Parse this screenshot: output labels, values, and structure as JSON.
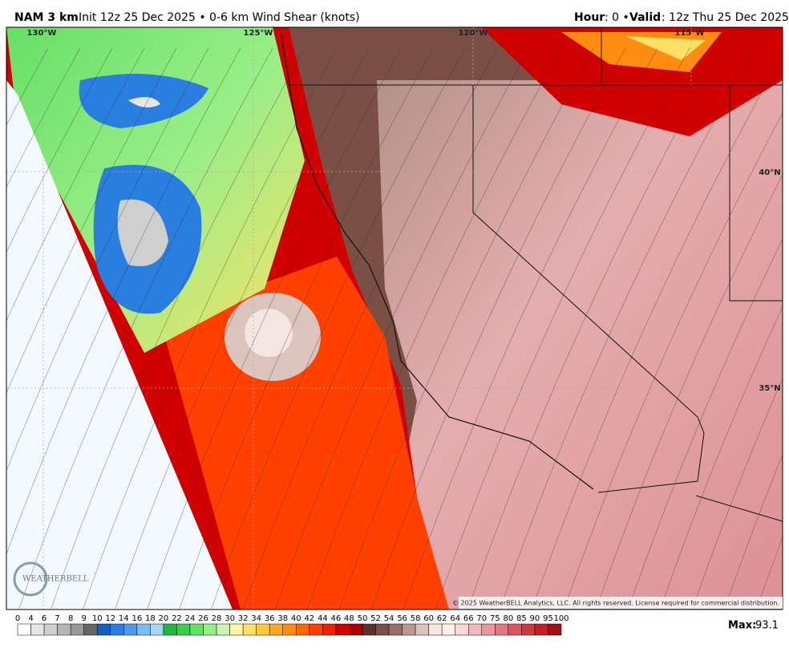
{
  "header": {
    "model": "NAM 3 km",
    "detail": "Init 12z 25 Dec 2025 • 0-6 km Wind Shear (knots)",
    "hour_label": "Hour",
    "hour_text": ": 0 •",
    "valid_label": "Valid",
    "valid_text": ": 12z Thu 25 Dec 2025"
  },
  "map": {
    "lon_labels": [
      "130°W",
      "125°W",
      "120°W",
      "115°W"
    ],
    "lat_labels": [
      "40°N",
      "35°N"
    ],
    "logo": "WEATHERBELL",
    "copyright": "© 2025 WeatherBELL Analytics, LLC. All rights reserved. License required for commercial distribution."
  },
  "colorbar": {
    "labels": [
      0,
      4,
      6,
      7,
      8,
      9,
      10,
      12,
      14,
      16,
      18,
      20,
      22,
      24,
      26,
      28,
      30,
      32,
      34,
      36,
      38,
      40,
      42,
      44,
      46,
      48,
      50,
      52,
      54,
      56,
      58,
      60,
      62,
      64,
      66,
      70,
      75,
      80,
      85,
      90,
      95,
      100
    ],
    "colors": [
      "#ffffff",
      "#e6e6e6",
      "#cfcfcf",
      "#b6b6b6",
      "#999999",
      "#666666",
      "#1560bd",
      "#2a7ee0",
      "#4a9af0",
      "#7abcf5",
      "#a8d8f8",
      "#22b83a",
      "#3ad04a",
      "#66e066",
      "#99ee88",
      "#c8f5b0",
      "#fff5a0",
      "#ffe066",
      "#ffc840",
      "#ffa820",
      "#ff8c10",
      "#ff6a00",
      "#ff4000",
      "#f02000",
      "#d00000",
      "#a80000",
      "#5a3328",
      "#7a5046",
      "#9a7066",
      "#bb9990",
      "#dcc4be",
      "#f5e6e4",
      "#fff0f0",
      "#f8d8da",
      "#f0b8bc",
      "#e8989e",
      "#e07880",
      "#d85860",
      "#d03840",
      "#c02028",
      "#a01018"
    ],
    "max_label": "Max:",
    "max_value": "93.1"
  }
}
